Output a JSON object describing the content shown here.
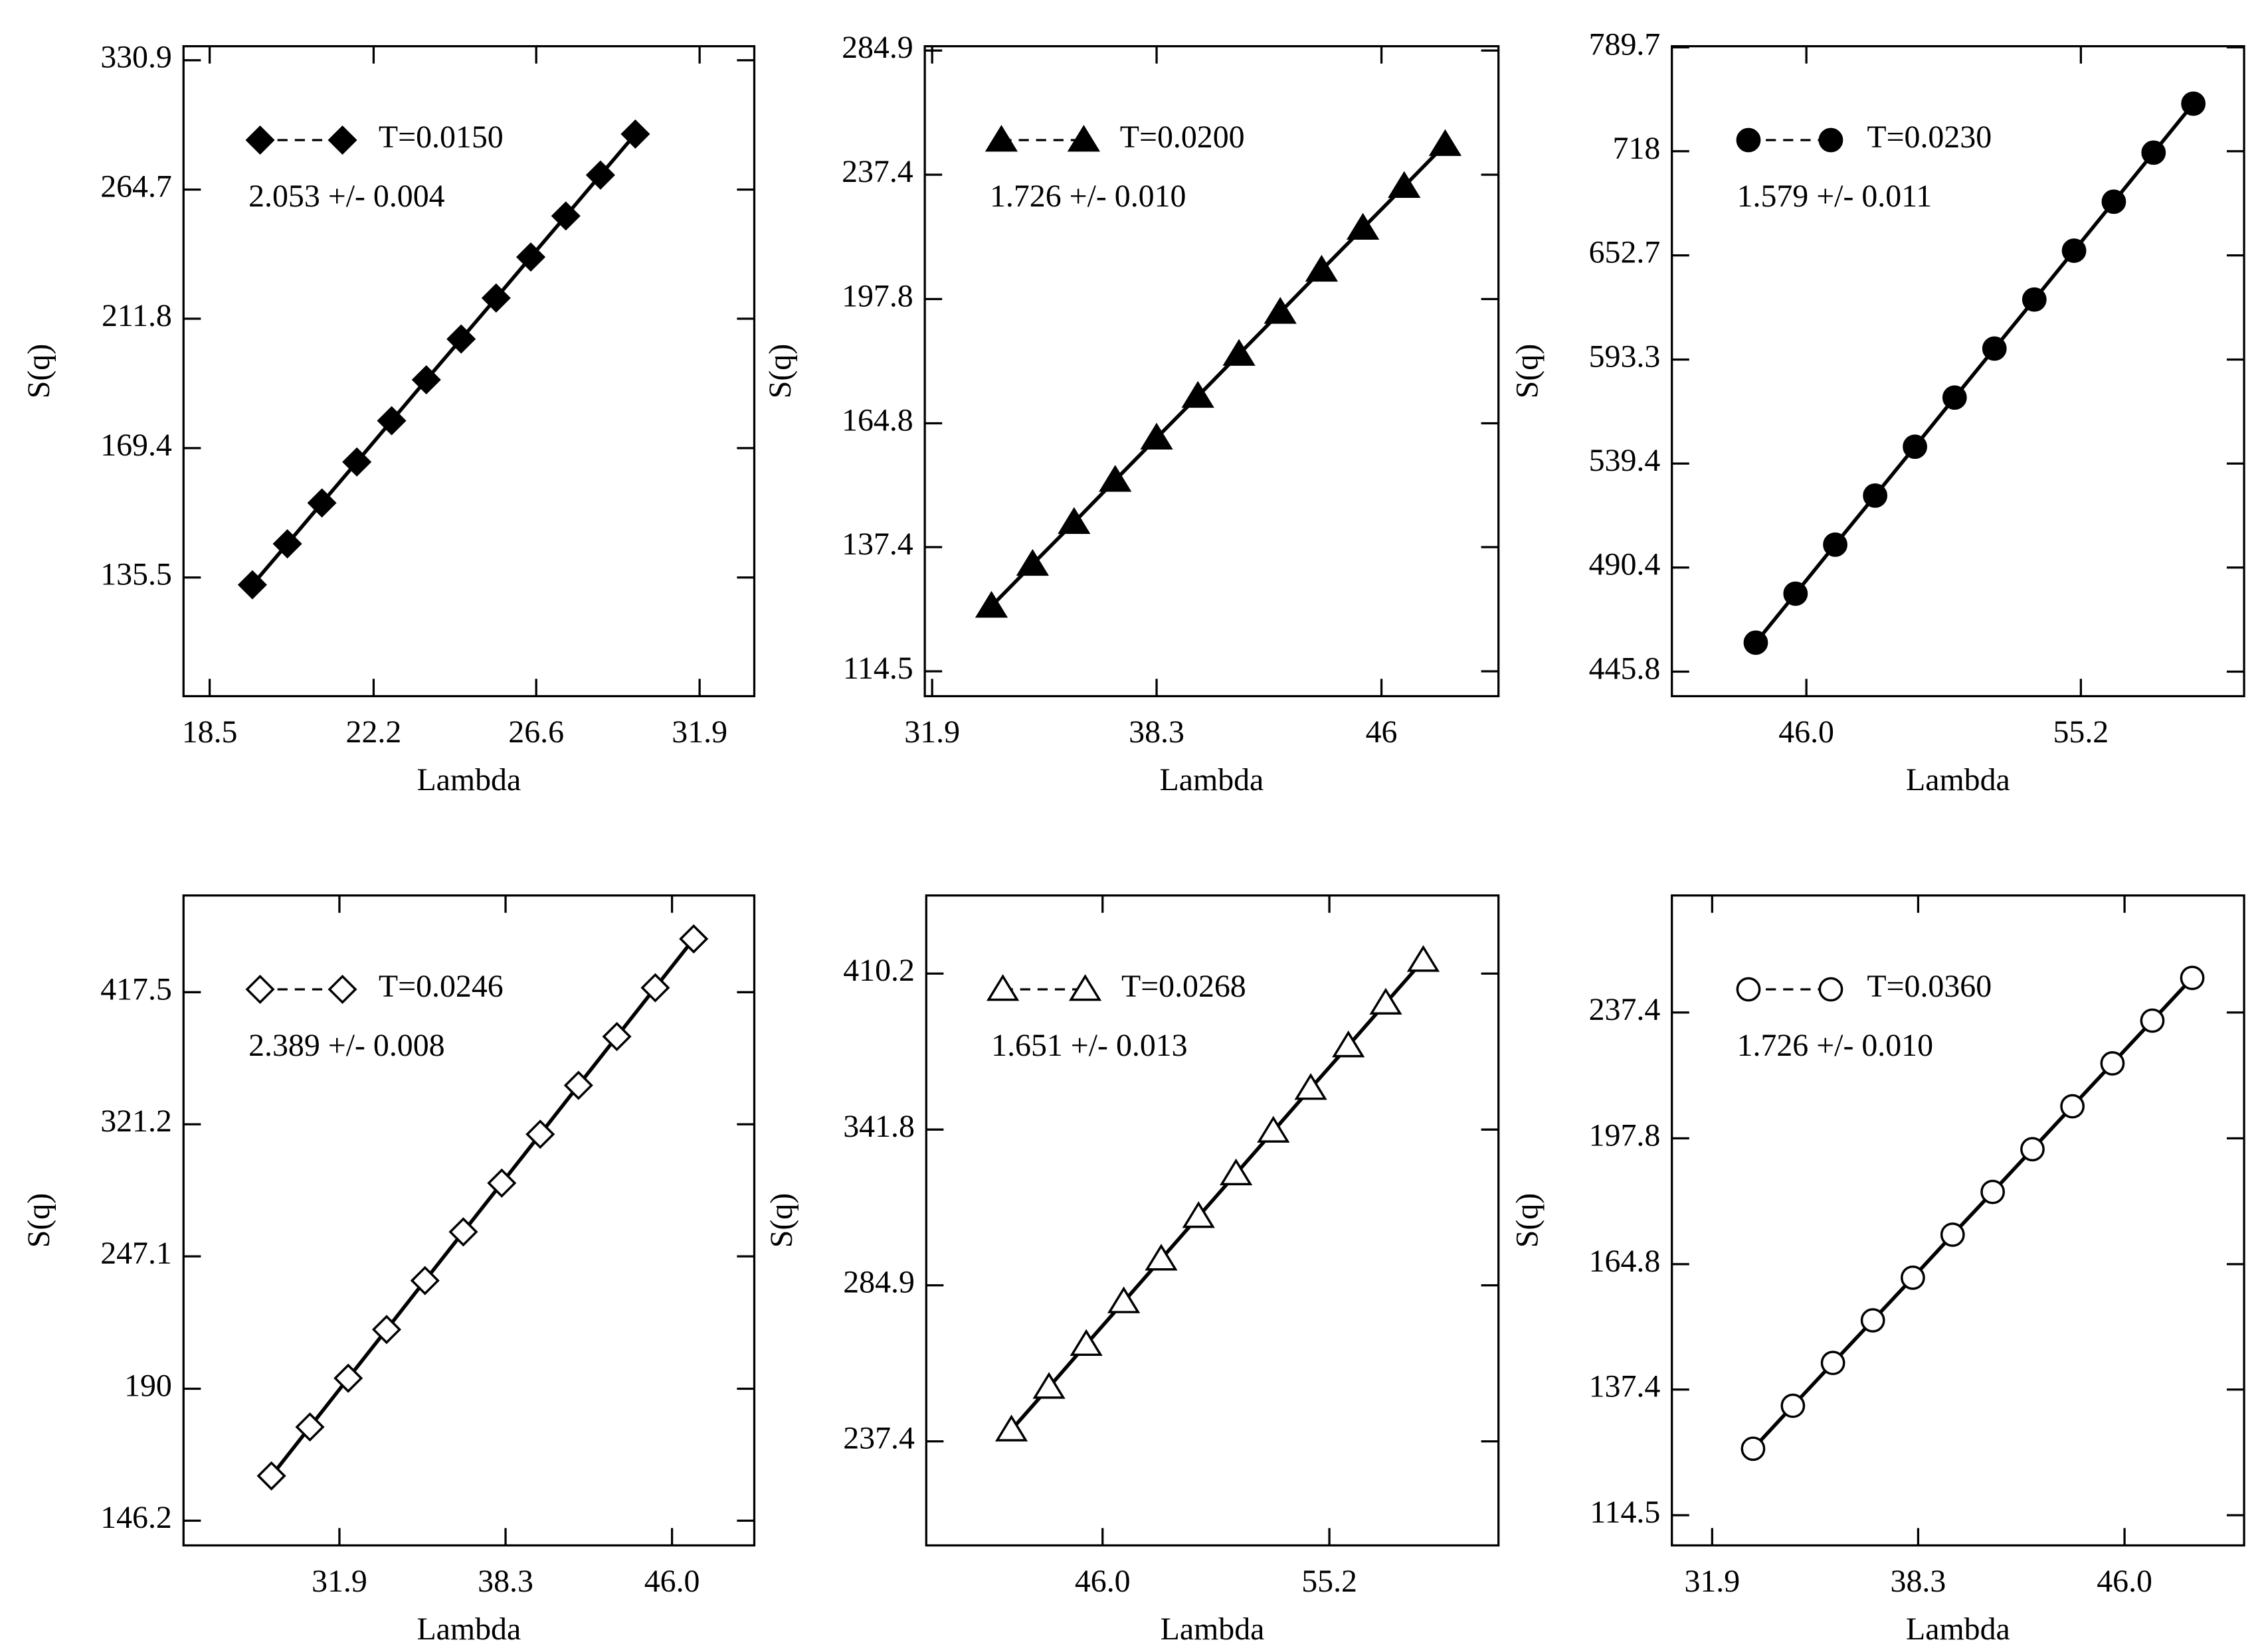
{
  "chart_data": [
    {
      "type": "line",
      "xlabel": "Lambda",
      "ylabel": "S(q)",
      "annotation": "2.053 +/- 0.004",
      "log_x": true,
      "log_y": true,
      "x": [
        19.4,
        20.17,
        20.96,
        21.79,
        22.65,
        23.54,
        24.47,
        25.44,
        26.44,
        27.49,
        28.57,
        29.7
      ],
      "series": [
        {
          "name": "T=0.0150",
          "color": "#000000",
          "marker": "diamond",
          "filled": true,
          "values": [
            133.8,
            143.6,
            154.1,
            165.4,
            177.6,
            190.6,
            204.5,
            219.5,
            235.6,
            252.9,
            271.4,
            291.3
          ]
        }
      ],
      "xlim": [
        17.97,
        33.9
      ],
      "ylim": [
        110.4,
        339
      ],
      "xticks": [
        18.5,
        22.2,
        26.6,
        31.9
      ],
      "yticks": [
        135.5,
        169.4,
        211.8,
        264.7,
        330.9
      ]
    },
    {
      "type": "line",
      "xlabel": "Lambda",
      "ylabel": "S(q)",
      "annotation": "1.726 +/- 0.010",
      "log_x": true,
      "log_y": true,
      "x": [
        33.48,
        34.62,
        35.81,
        37.03,
        38.3,
        39.61,
        40.96,
        42.36,
        43.81,
        45.31,
        46.86,
        48.45
      ],
      "series": [
        {
          "name": "T=0.0200",
          "color": "#000000",
          "marker": "triangle",
          "filled": true,
          "values": [
            126.0,
            134.0,
            142.5,
            151.6,
            161.3,
            171.5,
            182.4,
            194.0,
            206.4,
            219.5,
            233.4,
            248.2
          ]
        }
      ],
      "xlim": [
        31.71,
        50.6
      ],
      "ylim": [
        110.4,
        286.7
      ],
      "xticks": [
        31.9,
        38.3,
        46
      ],
      "yticks": [
        114.5,
        137.4,
        164.8,
        197.8,
        237.4,
        284.9
      ]
    },
    {
      "type": "line",
      "xlabel": "Lambda",
      "ylabel": "S(q)",
      "annotation": "1.579 +/- 0.011",
      "log_x": true,
      "log_y": true,
      "x": [
        44.48,
        45.67,
        46.89,
        48.15,
        49.44,
        50.76,
        52.12,
        53.52,
        54.95,
        56.42,
        57.93,
        59.48
      ],
      "series": [
        {
          "name": "T=0.0230",
          "color": "#000000",
          "marker": "circle",
          "filled": true,
          "values": [
            457.8,
            478.8,
            500.8,
            523.8,
            547.8,
            573.0,
            599.3,
            626.8,
            655.5,
            685.6,
            717.1,
            750.0
          ]
        }
      ],
      "xlim": [
        42.07,
        61.52
      ],
      "ylim": [
        435.9,
        790.5
      ],
      "xticks": [
        {
          "value": 46,
          "label": "46.0"
        },
        55.2
      ],
      "yticks": [
        445.8,
        490.4,
        539.4,
        593.3,
        652.7,
        718,
        789.7
      ]
    },
    {
      "type": "line",
      "xlabel": "Lambda",
      "ylabel": "S(q)",
      "annotation": "2.389 +/- 0.008",
      "log_x": true,
      "log_y": true,
      "x": [
        29.6,
        30.88,
        32.21,
        33.6,
        35.05,
        36.56,
        38.14,
        39.79,
        41.5,
        43.29,
        45.16,
        47.11
      ],
      "series": [
        {
          "name": "T=0.0246",
          "color": "#000000",
          "marker": "diamond",
          "filled": false,
          "values": [
            159.8,
            176.1,
            194.0,
            213.7,
            235.5,
            259.4,
            285.8,
            314.9,
            347.0,
            382.3,
            421.2,
            464.1
          ]
        }
      ],
      "xlim": [
        26.87,
        50.36
      ],
      "ylim": [
        139.2,
        505.9
      ],
      "xticks": [
        31.9,
        38.3,
        {
          "value": 46,
          "label": "46.0"
        }
      ],
      "yticks": [
        146.2,
        190,
        247.1,
        321.2,
        417.5
      ]
    },
    {
      "type": "line",
      "xlabel": "Lambda",
      "ylabel": "S(q)",
      "annotation": "1.651 +/- 0.013",
      "log_x": true,
      "log_y": true,
      "x": [
        42.75,
        44.06,
        45.4,
        46.79,
        48.22,
        49.69,
        51.21,
        52.77,
        54.38,
        56.05,
        57.76,
        59.53
      ],
      "series": [
        {
          "name": "T=0.0268",
          "color": "#000000",
          "marker": "triangle",
          "filled": false,
          "values": [
            240.6,
            252.9,
            265.9,
            279.5,
            293.8,
            308.8,
            324.6,
            341.2,
            358.7,
            377.0,
            396.3,
            416.6
          ]
        }
      ],
      "xlim": [
        39.92,
        63.24
      ],
      "ylim": [
        210.2,
        449.4
      ],
      "xticks": [
        {
          "value": 46,
          "label": "46.0"
        },
        55.2
      ],
      "yticks": [
        237.4,
        284.9,
        341.8,
        410.2
      ]
    },
    {
      "type": "line",
      "xlabel": "Lambda",
      "ylabel": "S(q)",
      "annotation": "1.726 +/- 0.010",
      "log_x": true,
      "log_y": true,
      "x": [
        33.08,
        34.27,
        35.51,
        36.79,
        38.12,
        39.49,
        40.92,
        42.39,
        43.92,
        45.51,
        47.15,
        48.85
      ],
      "series": [
        {
          "name": "T=0.0360",
          "color": "#000000",
          "marker": "circle",
          "filled": false,
          "values": [
            126.1,
            134.2,
            142.8,
            151.9,
            161.6,
            172.0,
            183.0,
            194.7,
            207.2,
            220.5,
            234.6,
            249.6
          ]
        }
      ],
      "xlim": [
        30.78,
        51.15
      ],
      "ylim": [
        109.6,
        281.3
      ],
      "xticks": [
        31.9,
        38.3,
        {
          "value": 46,
          "label": "46.0"
        }
      ],
      "yticks": [
        114.5,
        137.4,
        164.8,
        197.8,
        237.4
      ]
    }
  ]
}
